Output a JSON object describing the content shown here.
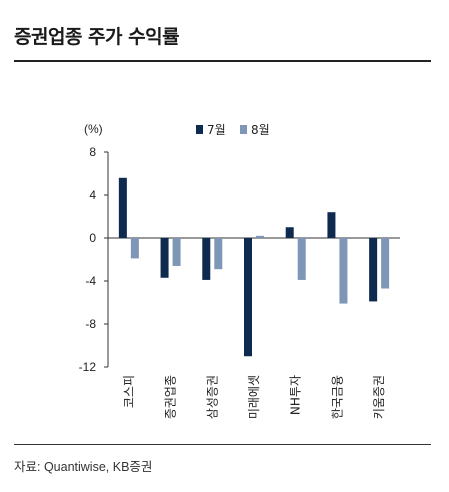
{
  "title": "증권업종 주가 수익률",
  "source": "자료: Quantiwise, KB증권",
  "chart_data": {
    "type": "bar",
    "title": "증권업종 주가 수익률",
    "ylabel": "(%)",
    "xlabel": "",
    "ylim": [
      -12,
      8
    ],
    "yticks": [
      8,
      4,
      0,
      -4,
      -8,
      -12
    ],
    "ytick_labels": [
      "8",
      "4",
      "0",
      "-4",
      "-8",
      "-12"
    ],
    "categories": [
      "코스피",
      "증권업종",
      "삼성증권",
      "미래에셋",
      "NH투자",
      "한국금융",
      "키움증권"
    ],
    "series": [
      {
        "name": "7월",
        "color": "#0f2a4f",
        "values": [
          5.6,
          -3.7,
          -3.9,
          -11.0,
          1.0,
          2.4,
          -5.9
        ]
      },
      {
        "name": "8월",
        "color": "#7e97b6",
        "values": [
          -1.9,
          -2.6,
          -2.9,
          0.2,
          -3.9,
          -6.1,
          -4.7
        ]
      }
    ],
    "legend": "top",
    "grid": false
  }
}
